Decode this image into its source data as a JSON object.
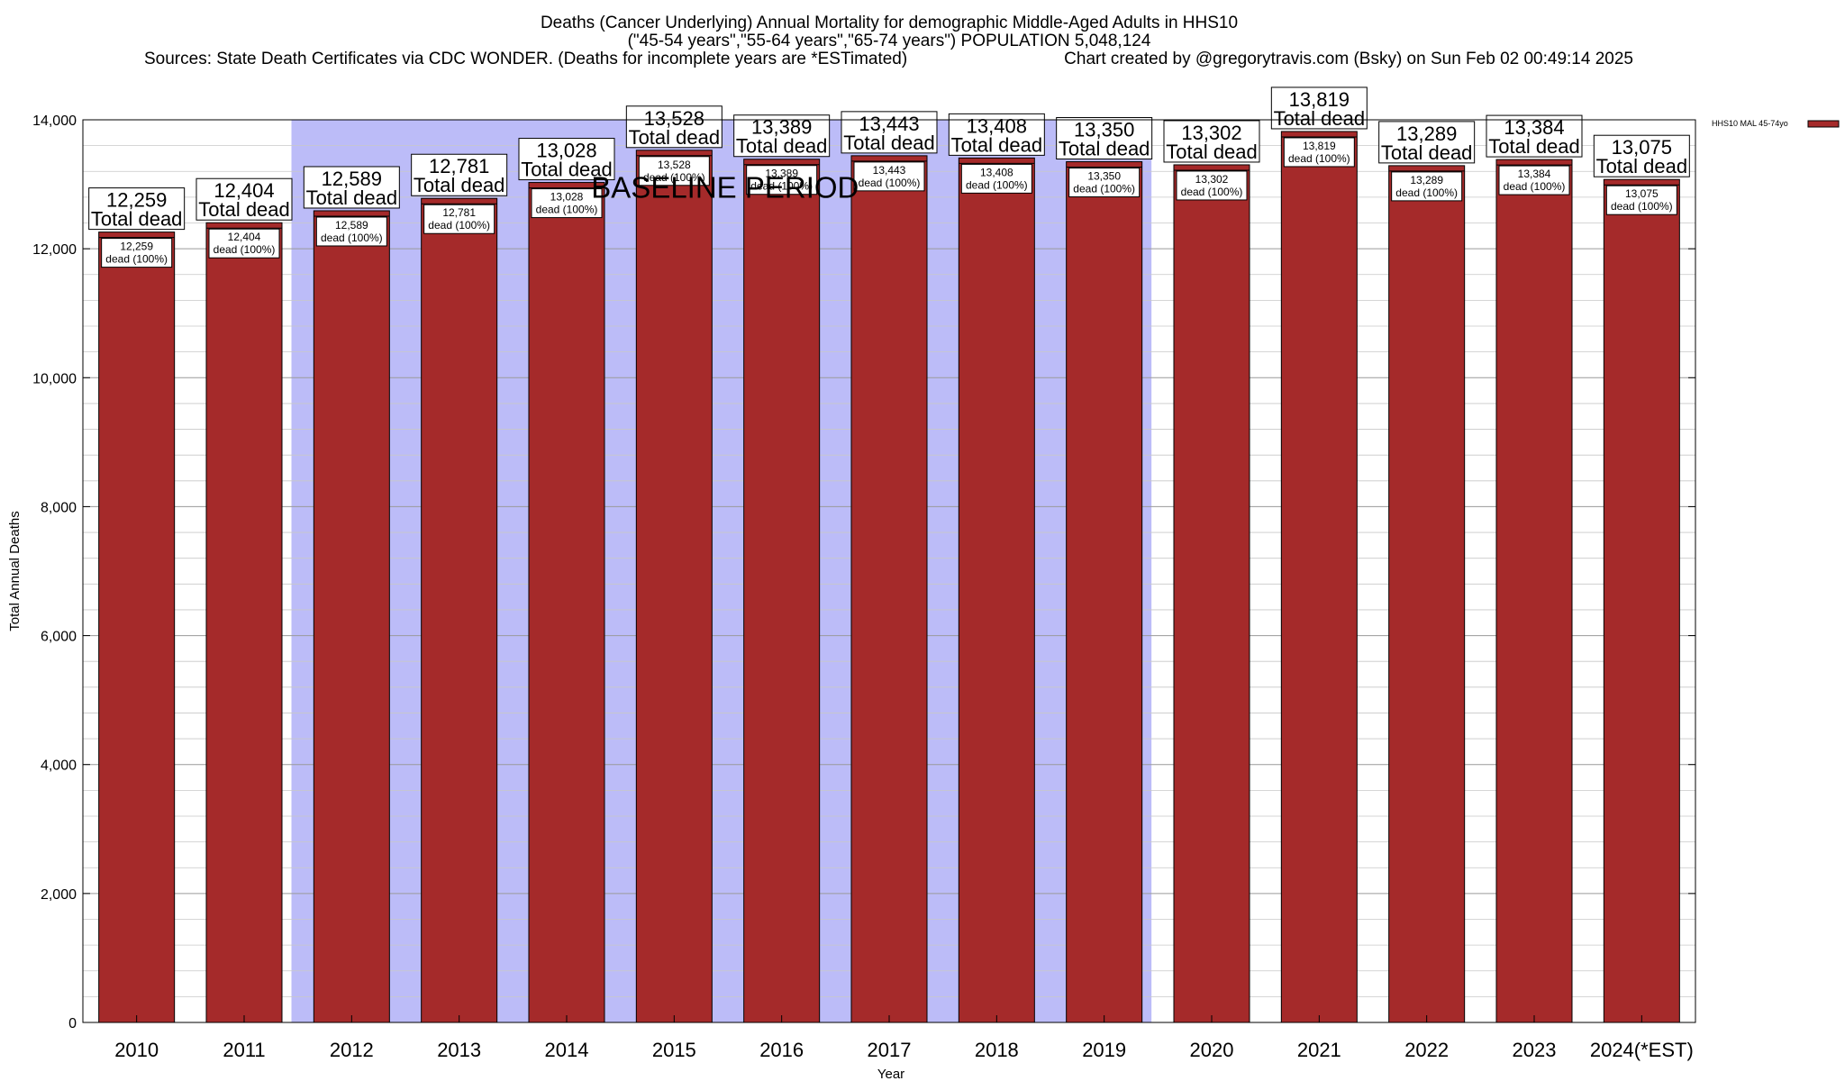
{
  "chart_data": {
    "type": "bar",
    "title": [
      "Deaths (Cancer Underlying) Annual Mortality for demographic Middle-Aged Adults in HHS10",
      "(\"45-54 years\",\"55-64 years\",\"65-74 years\") POPULATION 5,048,124",
      "Sources: State Death Certificates via CDC WONDER. (Deaths for incomplete years are *ESTimated)",
      "Chart created by @gregorytravis.com (Bsky) on Sun Feb 02 00:49:14 2025"
    ],
    "xlabel": "Year",
    "ylabel": "Total Annual Deaths",
    "ylim": [
      0,
      14000
    ],
    "yticks": [
      0,
      2000,
      4000,
      6000,
      8000,
      10000,
      12000,
      14000
    ],
    "ytick_labels": [
      "0",
      "2,000",
      "4,000",
      "6,000",
      "8,000",
      "10,000",
      "12,000",
      "14,000"
    ],
    "categories": [
      "2010",
      "2011",
      "2012",
      "2013",
      "2014",
      "2015",
      "2016",
      "2017",
      "2018",
      "2019",
      "2020",
      "2021",
      "2022",
      "2023",
      "2024(*EST)"
    ],
    "series": [
      {
        "name": "HHS10 MAL 45-74yo",
        "color": "#a52a2a",
        "values": [
          12259,
          12404,
          12589,
          12781,
          13028,
          13528,
          13389,
          13443,
          13408,
          13350,
          13302,
          13819,
          13289,
          13384,
          13075
        ]
      }
    ],
    "value_labels": [
      "12,259",
      "12,404",
      "12,589",
      "12,781",
      "13,028",
      "13,528",
      "13,389",
      "13,443",
      "13,408",
      "13,350",
      "13,302",
      "13,819",
      "13,289",
      "13,384",
      "13,075"
    ],
    "total_suffix": "Total dead",
    "pct_suffix": "dead (100%)",
    "baseline": {
      "label": "BASELINE PERIOD",
      "from": "2012",
      "to": "2019",
      "color": "#bcbcf8"
    },
    "grid": true,
    "minor_grid_step": 400,
    "legend_position": "top-right"
  }
}
